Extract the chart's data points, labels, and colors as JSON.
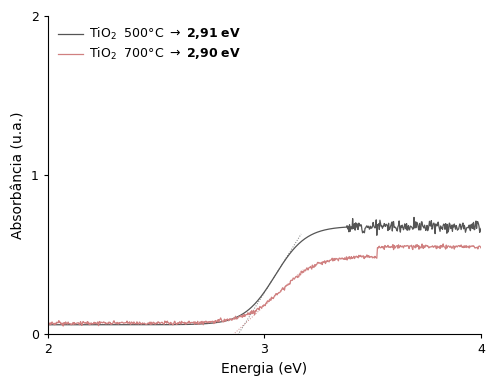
{
  "title": "",
  "xlabel": "Energia (eV)",
  "ylabel": "Absorbância (u.a.)",
  "xlim": [
    2,
    4
  ],
  "ylim": [
    0,
    2
  ],
  "xticks": [
    2,
    3,
    4
  ],
  "yticks": [
    0,
    1,
    2
  ],
  "legend": [
    {
      "label": "TiO₂  500°C →  '2,91 eV'",
      "color": "#555555",
      "lw": 0.9
    },
    {
      "label": "TiO₂  700°C →  '2,90 eV'",
      "color": "#d08080",
      "lw": 0.9
    }
  ],
  "bg_color": "#ffffff",
  "black_curve": {
    "x0": 3.05,
    "k": 14,
    "A": 0.62,
    "base": 0.06,
    "noise_start": 3.38,
    "noise_amp": 0.018,
    "color": "#555555"
  },
  "red_curve": {
    "x0": 3.08,
    "k": 12,
    "A": 0.42,
    "base": 0.07,
    "step_x": 3.52,
    "step_size": 0.06,
    "noise_amp": 0.006,
    "color": "#d08080"
  },
  "dotted_black": {
    "color": "#777777",
    "lw": 0.7
  },
  "dotted_red": {
    "color": "#cc8888",
    "lw": 0.7
  }
}
